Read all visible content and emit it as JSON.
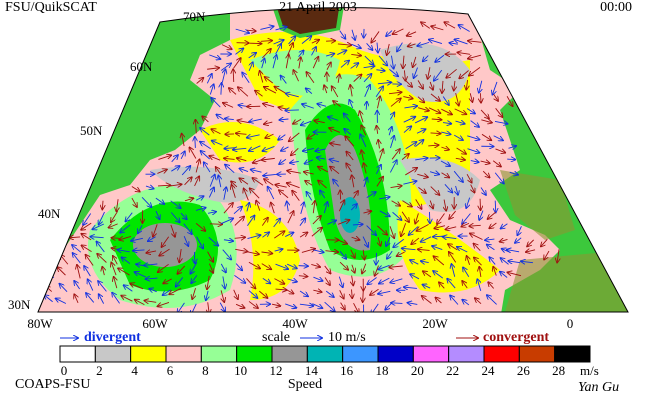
{
  "header": {
    "title": "FSU/QuikSCAT",
    "date": "21 April 2003",
    "time": "00:00"
  },
  "map": {
    "lat_labels": [
      "70N",
      "60N",
      "50N",
      "40N",
      "30N"
    ],
    "lon_labels": [
      "80W",
      "60W",
      "40W",
      "20W",
      "0"
    ]
  },
  "legend": {
    "divergent": "divergent",
    "scale": "scale",
    "scale_value": "10 m/s",
    "convergent": "convergent"
  },
  "colorbar": {
    "ticks": [
      0,
      2,
      4,
      6,
      8,
      10,
      12,
      14,
      16,
      18,
      20,
      22,
      24,
      26,
      28
    ],
    "unit": "m/s",
    "label": "Speed",
    "colors": [
      "#ffffff",
      "#c8c8c8",
      "#ffff00",
      "#ffc8c8",
      "#96ff96",
      "#00e600",
      "#969696",
      "#00b4b4",
      "#3c96ff",
      "#0000c8",
      "#ff64ff",
      "#b48cff",
      "#ff0000",
      "#c83c00",
      "#000000"
    ]
  },
  "footer": {
    "credit": "COAPS-FSU",
    "author": "Yan Gu"
  }
}
